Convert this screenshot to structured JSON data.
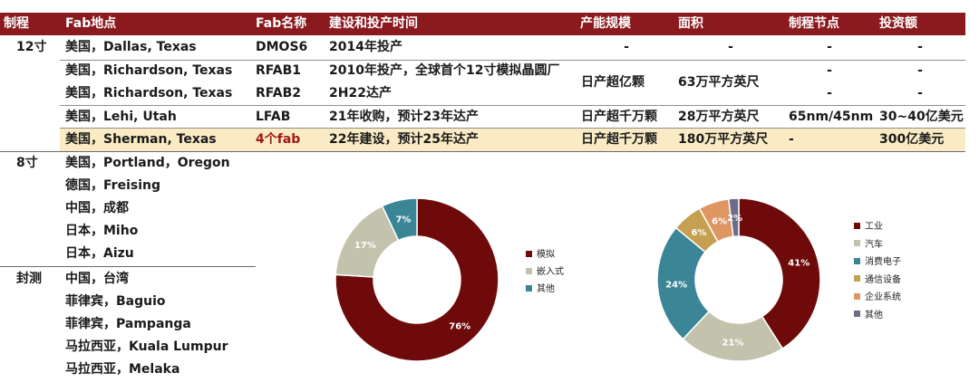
{
  "header": [
    "制程",
    "Fab地点",
    "Fab名称",
    "建设和投产时间",
    "产能规模",
    "面积",
    "制程节点",
    "投资额"
  ],
  "groups": {
    "g12": "12寸",
    "g8": "8寸",
    "pkg": "封测"
  },
  "rows12": [
    {
      "loc": "美国，Dallas, Texas",
      "fab": "DMOS6",
      "time": "2014年投产",
      "cap": "-",
      "area": "-",
      "node": "-",
      "inv": "-"
    },
    {
      "loc": "美国，Richardson, Texas",
      "fab": "RFAB1",
      "time": "2010年投产，全球首个12寸模拟晶圆厂",
      "cap": "日产超亿颗",
      "area": "63万平方英尺",
      "node": "-",
      "inv": "-"
    },
    {
      "loc": "美国，Richardson, Texas",
      "fab": "RFAB2",
      "time": "2H22达产",
      "cap": "",
      "area": "",
      "node": "-",
      "inv": "-"
    },
    {
      "loc": "美国，Lehi, Utah",
      "fab": "LFAB",
      "time": "21年收购，预计23年达产",
      "cap": "日产超千万颗",
      "area": "28万平方英尺",
      "node": "65nm/45nm",
      "inv": "30~40亿美元"
    },
    {
      "loc": "美国，Sherman, Texas",
      "fab": "4个fab",
      "time": "22年建设，预计25年达产",
      "cap": "日产超千万颗",
      "area": "180万平方英尺",
      "node": "-",
      "inv": "300亿美元"
    }
  ],
  "rows8": [
    "美国，Portland，Oregon",
    "德国，Freising",
    "中国，成都",
    "日本，Miho",
    "日本，Aizu"
  ],
  "rowsPkg": [
    "中国，台湾",
    "菲律宾，Baguio",
    "菲律宾，Pampanga",
    "马拉西亚，Kuala Lumpur",
    "马拉西亚，Melaka"
  ],
  "chart_data": [
    {
      "type": "pie",
      "labels": [
        "模拟",
        "嵌入式",
        "其他"
      ],
      "values": [
        76,
        17,
        7
      ],
      "value_labels": [
        "76%",
        "17%",
        "7%"
      ],
      "colors": [
        "#6e0a0a",
        "#c2c2ad",
        "#3a8696"
      ],
      "legend": "right"
    },
    {
      "type": "pie",
      "labels": [
        "工业",
        "汽车",
        "消费电子",
        "通信设备",
        "企业系统",
        "其他"
      ],
      "values": [
        41,
        21,
        24,
        6,
        6,
        2
      ],
      "value_labels": [
        "41%",
        "21%",
        "24%",
        "6%",
        "6%",
        "2%"
      ],
      "colors": [
        "#6e0a0a",
        "#c2c2ad",
        "#3a8696",
        "#c4a050",
        "#de9662",
        "#6c6c8a"
      ],
      "legend": "right"
    }
  ]
}
